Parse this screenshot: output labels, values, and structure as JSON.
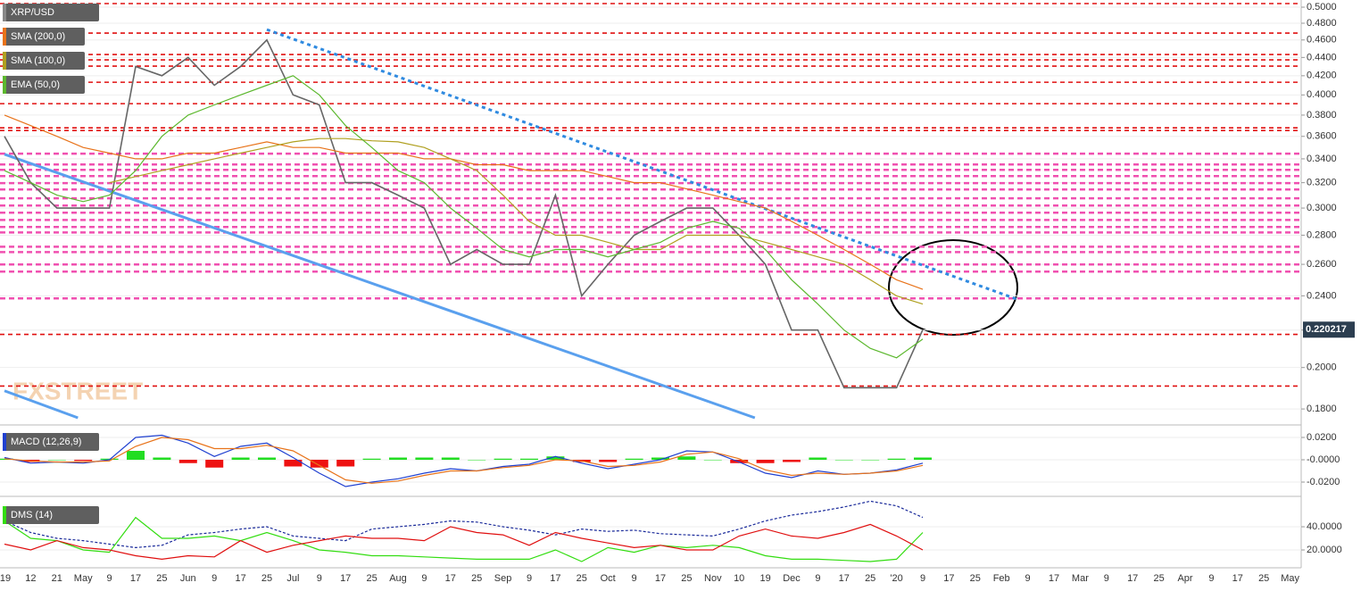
{
  "chart_data": [
    {
      "type": "line",
      "title": "XRP/USD",
      "log": true,
      "watermark": "FXSTREET",
      "categories": [
        "'19",
        "12",
        "21",
        "May",
        "9",
        "17",
        "25",
        "Jun",
        "9",
        "17",
        "25",
        "Jul",
        "9",
        "17",
        "25",
        "Aug",
        "9",
        "17",
        "25",
        "Sep",
        "9",
        "17",
        "25",
        "Oct",
        "9",
        "17",
        "25",
        "Nov",
        "10",
        "19",
        "Dec",
        "9",
        "17",
        "25",
        "'20",
        "9",
        "17",
        "25",
        "Feb",
        "9",
        "17",
        "Mar",
        "9",
        "17",
        "25",
        "Apr",
        "9",
        "17",
        "25",
        "May"
      ],
      "ylim": [
        0.1752,
        0.5092
      ],
      "yticks": [
        {
          "value": 0.5,
          "label": "0.5000"
        },
        {
          "value": 0.48,
          "label": "0.4800"
        },
        {
          "value": 0.46,
          "label": "0.4600"
        },
        {
          "value": 0.44,
          "label": "0.4400"
        },
        {
          "value": 0.42,
          "label": "0.4200"
        },
        {
          "value": 0.4,
          "label": "0.4000"
        },
        {
          "value": 0.38,
          "label": "0.3800"
        },
        {
          "value": 0.36,
          "label": "0.3600"
        },
        {
          "value": 0.34,
          "label": "0.3400"
        },
        {
          "value": 0.32,
          "label": "0.3200"
        },
        {
          "value": 0.3,
          "label": "0.3000"
        },
        {
          "value": 0.28,
          "label": "0.2800"
        },
        {
          "value": 0.26,
          "label": "0.2600"
        },
        {
          "value": 0.24,
          "label": "0.2400"
        },
        {
          "value": 0.22,
          "label": "0.2200"
        },
        {
          "value": 0.2,
          "label": "0.2000"
        },
        {
          "value": 0.18,
          "label": "0.1800"
        }
      ],
      "last_price": 0.220217,
      "series": [
        {
          "color": "#666666",
          "values": [
            0.36,
            0.32,
            0.3,
            0.3,
            0.3,
            0.43,
            0.42,
            0.44,
            0.41,
            0.43,
            0.46,
            0.4,
            0.39,
            0.32,
            0.32,
            0.31,
            0.3,
            0.26,
            0.27,
            0.26,
            0.26,
            0.31,
            0.24,
            0.26,
            0.28,
            0.29,
            0.3,
            0.3,
            0.28,
            0.26,
            0.22,
            0.22,
            0.19,
            0.19,
            0.19,
            0.2202,
            null,
            null,
            null,
            null,
            null,
            null,
            null,
            null,
            null,
            null,
            null,
            null,
            null,
            null
          ]
        },
        {
          "name": "SMA (200,0)",
          "color": "#e8731a",
          "values": [
            0.38,
            0.37,
            0.36,
            0.35,
            0.345,
            0.34,
            0.34,
            0.345,
            0.345,
            0.35,
            0.355,
            0.35,
            0.35,
            0.345,
            0.345,
            0.345,
            0.34,
            0.34,
            0.335,
            0.335,
            0.33,
            0.33,
            0.33,
            0.325,
            0.32,
            0.32,
            0.315,
            0.31,
            0.305,
            0.3,
            0.29,
            0.28,
            0.27,
            0.26,
            0.25,
            0.244,
            null,
            null,
            null,
            null,
            null,
            null,
            null,
            null,
            null,
            null,
            null,
            null,
            null,
            null
          ]
        },
        {
          "name": "SMA (100,0)",
          "color": "#b0a020",
          "values": [
            null,
            null,
            null,
            null,
            0.32,
            0.325,
            0.33,
            0.335,
            0.34,
            0.345,
            0.35,
            0.355,
            0.358,
            0.358,
            0.356,
            0.355,
            0.35,
            0.34,
            0.33,
            0.31,
            0.29,
            0.28,
            0.28,
            0.275,
            0.27,
            0.27,
            0.28,
            0.28,
            0.28,
            0.275,
            0.27,
            0.265,
            0.26,
            0.25,
            0.24,
            0.235,
            null,
            null,
            null,
            null,
            null,
            null,
            null,
            null,
            null,
            null,
            null,
            null,
            null,
            null
          ]
        },
        {
          "name": "EMA (50,0)",
          "color": "#5cb82e",
          "values": [
            0.33,
            0.32,
            0.31,
            0.305,
            0.31,
            0.33,
            0.36,
            0.38,
            0.39,
            0.4,
            0.41,
            0.42,
            0.4,
            0.37,
            0.35,
            0.33,
            0.32,
            0.3,
            0.285,
            0.27,
            0.265,
            0.27,
            0.27,
            0.265,
            0.27,
            0.275,
            0.285,
            0.29,
            0.285,
            0.27,
            0.25,
            0.235,
            0.22,
            0.21,
            0.205,
            0.215,
            null,
            null,
            null,
            null,
            null,
            null,
            null,
            null,
            null,
            null,
            null,
            null,
            null,
            null
          ]
        }
      ],
      "levels_color": "#e01010",
      "levels": [
        0.5046,
        0.4681,
        0.4433,
        0.4373,
        0.4304,
        0.4131,
        0.3912,
        0.3679,
        0.3654,
        0.2176,
        0.1908
      ],
      "zones_color": "#f050b0",
      "zones": [
        0.3445,
        0.3352,
        0.3306,
        0.3254,
        0.3196,
        0.3145,
        0.3075,
        0.3019,
        0.2965,
        0.2911,
        0.2859,
        0.282,
        0.2719,
        0.2682,
        0.2599,
        0.2552,
        0.2384
      ],
      "trendlines": [
        {
          "color": "#2f8ae0",
          "dash": true,
          "x": [
            10,
            38.6
          ],
          "y": [
            0.4723,
            0.2379
          ]
        },
        {
          "color": "#5aa0ee",
          "dash": false,
          "x": [
            0,
            28.6
          ],
          "y": [
            0.344,
            0.176
          ]
        },
        {
          "color": "#5aa0ee",
          "dash": false,
          "x": [
            0,
            2.8
          ],
          "y": [
            0.1885,
            0.176
          ]
        }
      ]
    },
    {
      "type": "combo",
      "title": "MACD (12,26,9)",
      "ylim": [
        -0.028,
        0.0272
      ],
      "yticks": [
        {
          "value": 0.02,
          "label": "0.0200"
        },
        {
          "value": 0,
          "label": "-0.0000"
        },
        {
          "value": -0.02,
          "label": "-0.0200"
        }
      ],
      "up_color": "#22dd22",
      "down_color": "#ee1111",
      "series": [
        {
          "style": "bar",
          "values": [
            0.001,
            -0.002,
            0.0,
            -0.001,
            0.001,
            0.008,
            0.002,
            -0.003,
            -0.007,
            0.002,
            0.002,
            -0.006,
            -0.007,
            -0.006,
            0.001,
            0.002,
            0.002,
            0.002,
            0.0,
            0.001,
            0.001,
            0.003,
            -0.002,
            -0.002,
            0.001,
            0.002,
            0.003,
            0.0,
            -0.003,
            -0.003,
            -0.002,
            0.002,
            0.0,
            0.0,
            0.001,
            0.002,
            null,
            null,
            null,
            null,
            null,
            null,
            null,
            null,
            null,
            null,
            null,
            null,
            null,
            null
          ]
        },
        {
          "color": "#2040d0",
          "values": [
            0.002,
            -0.003,
            -0.002,
            -0.003,
            0.0,
            0.02,
            0.022,
            0.015,
            0.003,
            0.012,
            0.015,
            0.002,
            -0.012,
            -0.024,
            -0.02,
            -0.017,
            -0.012,
            -0.008,
            -0.01,
            -0.006,
            -0.004,
            0.003,
            -0.003,
            -0.008,
            -0.004,
            0.0,
            0.008,
            0.007,
            -0.002,
            -0.012,
            -0.016,
            -0.01,
            -0.013,
            -0.012,
            -0.009,
            -0.003,
            null,
            null,
            null,
            null,
            null,
            null,
            null,
            null,
            null,
            null,
            null,
            null,
            null,
            null
          ]
        },
        {
          "color": "#e8731a",
          "values": [
            0.001,
            -0.001,
            -0.002,
            -0.002,
            -0.001,
            0.012,
            0.02,
            0.018,
            0.01,
            0.01,
            0.013,
            0.008,
            -0.005,
            -0.018,
            -0.021,
            -0.019,
            -0.014,
            -0.01,
            -0.01,
            -0.007,
            -0.005,
            0.0,
            -0.001,
            -0.006,
            -0.005,
            -0.002,
            0.005,
            0.007,
            0.001,
            -0.009,
            -0.014,
            -0.012,
            -0.013,
            -0.012,
            -0.01,
            -0.005,
            null,
            null,
            null,
            null,
            null,
            null,
            null,
            null,
            null,
            null,
            null,
            null,
            null,
            null
          ]
        }
      ]
    },
    {
      "type": "line",
      "title": "DMS (14)",
      "ylim": [
        7.7,
        60.8
      ],
      "yticks": [
        {
          "value": 40,
          "label": "40.0000"
        },
        {
          "value": 20,
          "label": "20.0000"
        }
      ],
      "series": [
        {
          "color": "#1a2a9a",
          "dash": true,
          "values": [
            45,
            35,
            30,
            28,
            25,
            22,
            24,
            33,
            35,
            38,
            40,
            32,
            30,
            28,
            38,
            40,
            42,
            45,
            44,
            40,
            37,
            33,
            38,
            36,
            37,
            34,
            33,
            32,
            38,
            45,
            50,
            53,
            57,
            62,
            58,
            48,
            null,
            null,
            null,
            null,
            null,
            null,
            null,
            null,
            null,
            null,
            null,
            null,
            null,
            null
          ]
        },
        {
          "color": "#33dd11",
          "values": [
            45,
            30,
            28,
            20,
            18,
            48,
            30,
            30,
            32,
            28,
            35,
            28,
            20,
            18,
            15,
            15,
            14,
            13,
            12,
            12,
            12,
            20,
            10,
            22,
            18,
            24,
            22,
            24,
            22,
            15,
            12,
            12,
            11,
            10,
            12,
            35,
            null,
            null,
            null,
            null,
            null,
            null,
            null,
            null,
            null,
            null,
            null,
            null,
            null,
            null
          ]
        },
        {
          "color": "#e01010",
          "values": [
            25,
            20,
            28,
            22,
            20,
            15,
            12,
            15,
            14,
            28,
            18,
            24,
            28,
            32,
            30,
            30,
            28,
            40,
            35,
            33,
            24,
            35,
            30,
            26,
            22,
            24,
            20,
            20,
            32,
            38,
            32,
            30,
            35,
            42,
            32,
            20,
            null,
            null,
            null,
            null,
            null,
            null,
            null,
            null,
            null,
            null,
            null,
            null,
            null,
            null
          ]
        }
      ]
    }
  ]
}
